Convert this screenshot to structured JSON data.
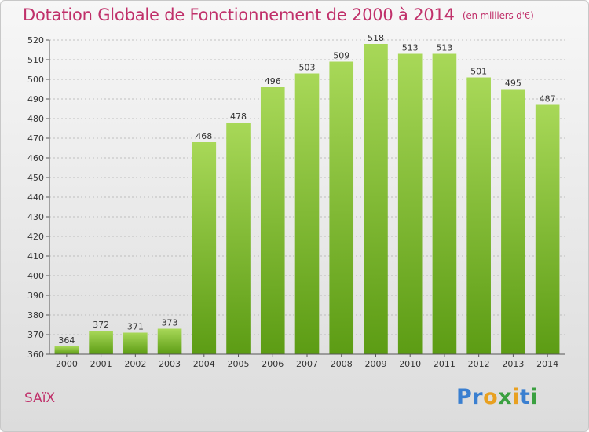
{
  "title": "Dotation Globale de Fonctionnement de 2000 à 2014",
  "unit_note": "(en milliers d'€)",
  "commune": "SAïX",
  "brand": {
    "name": "Proxiti",
    "letters": [
      "P",
      "r",
      "o",
      "x",
      "i",
      "t",
      "i"
    ],
    "letter_colors": [
      "#3a7fd0",
      "#3a7fd0",
      "#e8a020",
      "#3aa040",
      "#e8a020",
      "#3a7fd0",
      "#3aa040"
    ]
  },
  "colors": {
    "title": "#c0306a",
    "bar_top": "#a8d858",
    "bar_bottom": "#5c9c14",
    "grid": "#b0b0b0"
  },
  "chart_data": {
    "type": "bar",
    "title": "Dotation Globale de Fonctionnement de 2000 à 2014",
    "subtitle": "(en milliers d'€)",
    "categories": [
      "2000",
      "2001",
      "2002",
      "2003",
      "2004",
      "2005",
      "2006",
      "2007",
      "2008",
      "2009",
      "2010",
      "2011",
      "2012",
      "2013",
      "2014"
    ],
    "values": [
      364,
      372,
      371,
      373,
      468,
      478,
      496,
      503,
      509,
      518,
      513,
      513,
      501,
      495,
      487
    ],
    "ylim": [
      360,
      520
    ],
    "yticks": [
      360,
      370,
      380,
      390,
      400,
      410,
      420,
      430,
      440,
      450,
      460,
      470,
      480,
      490,
      500,
      510,
      520
    ],
    "grid": true,
    "xlabel": "",
    "ylabel": ""
  }
}
